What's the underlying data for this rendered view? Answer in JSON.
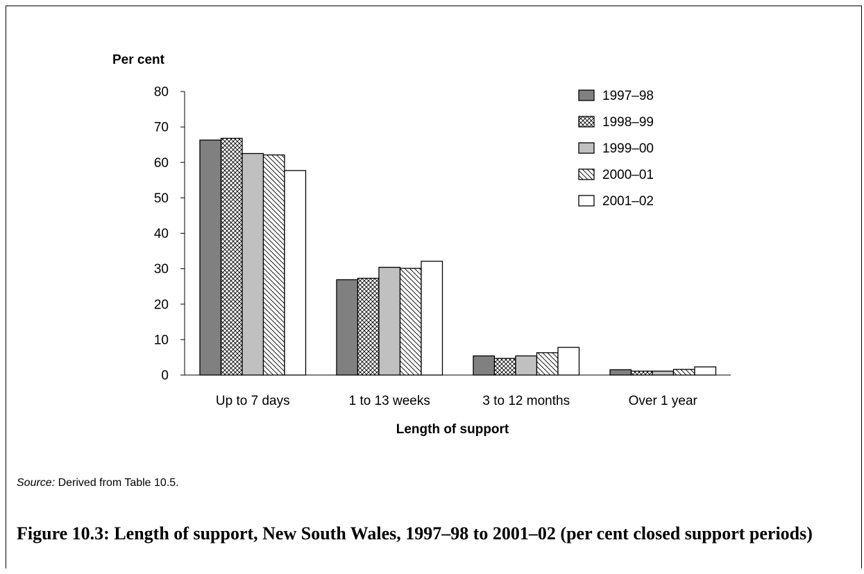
{
  "chart_data": {
    "type": "bar",
    "ylabel": "Per cent",
    "xlabel": "Length of support",
    "ylim": [
      0,
      80
    ],
    "yticks": [
      0,
      10,
      20,
      30,
      40,
      50,
      60,
      70,
      80
    ],
    "grid": false,
    "legend_position": "top-right",
    "categories": [
      "Up to 7 days",
      "1 to 13 weeks",
      "3 to 12 months",
      "Over 1 year"
    ],
    "series": [
      {
        "name": "1997–98",
        "values": [
          66.3,
          26.9,
          5.4,
          1.5
        ],
        "fill": "#808080",
        "pattern": "solid"
      },
      {
        "name": "1998–99",
        "values": [
          66.8,
          27.3,
          4.7,
          1.1
        ],
        "fill": "#ffffff",
        "pattern": "crosshatch"
      },
      {
        "name": "1999–00",
        "values": [
          62.5,
          30.4,
          5.4,
          1.1
        ],
        "fill": "#c0c0c0",
        "pattern": "solid"
      },
      {
        "name": "2000–01",
        "values": [
          62.1,
          30.1,
          6.3,
          1.6
        ],
        "fill": "#ffffff",
        "pattern": "diagonal"
      },
      {
        "name": "2001–02",
        "values": [
          57.7,
          32.1,
          7.8,
          2.3
        ],
        "fill": "#ffffff",
        "pattern": "solid"
      }
    ]
  },
  "source": {
    "label": "Source:",
    "text": " Derived from Table 10.5."
  },
  "caption": "Figure 10.3:  Length of support, New South Wales, 1997–98 to 2001–02 (per cent closed support periods)"
}
